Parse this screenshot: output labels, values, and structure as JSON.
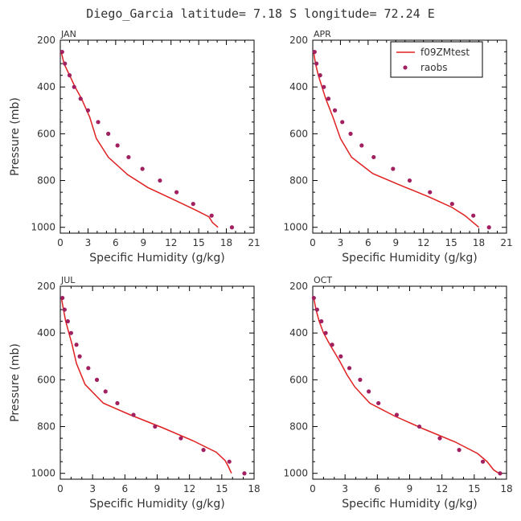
{
  "figure": {
    "title": "Diego_Garcia  latitude=  7.18 S longitude=  72.24 E"
  },
  "colors": {
    "model_line": "#e02020",
    "obs_marker": "#a02060",
    "axis": "#000000"
  },
  "legend": {
    "placement": "top-right of APR panel",
    "entries": [
      {
        "name": "f09ZMtest",
        "style": "line",
        "color": "#e02020"
      },
      {
        "name": "raobs",
        "style": "marker",
        "color": "#a02060"
      }
    ]
  },
  "chart_data": [
    {
      "type": "line",
      "panel_label": "JAN",
      "xlabel": "Specific Humidity (g/kg)",
      "ylabel": "Pressure (mb)",
      "xlim": [
        0,
        21
      ],
      "xticks": [
        0,
        3,
        6,
        9,
        12,
        15,
        18,
        21
      ],
      "ylim": [
        200,
        1025
      ],
      "yticks": [
        200,
        400,
        600,
        800,
        1000
      ],
      "y_inverted": true,
      "series": [
        {
          "name": "f09ZMtest",
          "kind": "line",
          "x": [
            0.1,
            0.4,
            1.0,
            1.6,
            2.3,
            3.2,
            3.9,
            5.2,
            7.3,
            9.5,
            12.2,
            14.6,
            16.1,
            16.5,
            17.1
          ],
          "y": [
            250,
            300,
            350,
            400,
            450,
            530,
            620,
            700,
            775,
            830,
            880,
            925,
            955,
            980,
            1000
          ]
        },
        {
          "name": "raobs",
          "kind": "scatter",
          "x": [
            0.2,
            0.5,
            1.0,
            1.5,
            2.2,
            3.0,
            4.1,
            5.2,
            6.2,
            7.4,
            8.9,
            10.8,
            12.6,
            14.4,
            16.4,
            18.6
          ],
          "y": [
            250,
            300,
            350,
            400,
            450,
            500,
            550,
            600,
            650,
            700,
            750,
            800,
            850,
            900,
            950,
            1000
          ]
        }
      ]
    },
    {
      "type": "line",
      "panel_label": "APR",
      "xlabel": "Specific Humidity (g/kg)",
      "ylabel": "",
      "xlim": [
        0,
        21
      ],
      "xticks": [
        0,
        3,
        6,
        9,
        12,
        15,
        18,
        21
      ],
      "ylim": [
        200,
        1025
      ],
      "yticks": [
        200,
        400,
        600,
        800,
        1000
      ],
      "y_inverted": true,
      "series": [
        {
          "name": "f09ZMtest",
          "kind": "line",
          "x": [
            0.1,
            0.3,
            0.6,
            1.0,
            1.4,
            2.2,
            3.0,
            4.2,
            6.5,
            9.5,
            12.6,
            15.1,
            16.5,
            17.4,
            18.0
          ],
          "y": [
            250,
            300,
            350,
            400,
            450,
            530,
            620,
            700,
            770,
            820,
            870,
            915,
            950,
            980,
            1000
          ]
        },
        {
          "name": "raobs",
          "kind": "scatter",
          "x": [
            0.2,
            0.4,
            0.8,
            1.2,
            1.7,
            2.4,
            3.2,
            4.1,
            5.3,
            6.6,
            8.7,
            10.5,
            12.7,
            15.1,
            17.4,
            19.1
          ],
          "y": [
            250,
            300,
            350,
            400,
            450,
            500,
            550,
            600,
            650,
            700,
            750,
            800,
            850,
            900,
            950,
            1000
          ]
        }
      ]
    },
    {
      "type": "line",
      "panel_label": "JUL",
      "xlabel": "Specific Humidity (g/kg)",
      "ylabel": "Pressure (mb)",
      "xlim": [
        0,
        18
      ],
      "xticks": [
        0,
        3,
        6,
        9,
        12,
        15,
        18
      ],
      "ylim": [
        200,
        1025
      ],
      "yticks": [
        200,
        400,
        600,
        800,
        1000
      ],
      "y_inverted": true,
      "series": [
        {
          "name": "f09ZMtest",
          "kind": "line",
          "x": [
            0.1,
            0.3,
            0.5,
            0.8,
            1.1,
            1.5,
            2.3,
            4.0,
            6.5,
            9.5,
            12.3,
            14.5,
            15.3,
            15.6,
            15.9
          ],
          "y": [
            250,
            300,
            350,
            400,
            450,
            530,
            620,
            700,
            750,
            805,
            860,
            910,
            945,
            970,
            1000
          ]
        },
        {
          "name": "raobs",
          "kind": "scatter",
          "x": [
            0.2,
            0.4,
            0.7,
            1.0,
            1.5,
            1.8,
            2.6,
            3.4,
            4.2,
            5.3,
            6.8,
            8.8,
            11.2,
            13.3,
            15.7,
            17.1
          ],
          "y": [
            250,
            300,
            350,
            400,
            450,
            500,
            550,
            600,
            650,
            700,
            750,
            800,
            850,
            900,
            950,
            1000
          ]
        }
      ]
    },
    {
      "type": "line",
      "panel_label": "OCT",
      "xlabel": "Specific Humidity (g/kg)",
      "ylabel": "",
      "xlim": [
        0,
        18
      ],
      "xticks": [
        0,
        3,
        6,
        9,
        12,
        15,
        18
      ],
      "ylim": [
        200,
        1025
      ],
      "yticks": [
        200,
        400,
        600,
        800,
        1000
      ],
      "y_inverted": true,
      "series": [
        {
          "name": "f09ZMtest",
          "kind": "line",
          "x": [
            0.1,
            0.3,
            0.6,
            1.0,
            1.6,
            2.5,
            3.2,
            3.9,
            5.3,
            7.6,
            10.3,
            13.2,
            15.3,
            16.2,
            16.8,
            17.3
          ],
          "y": [
            250,
            300,
            350,
            400,
            450,
            520,
            580,
            630,
            700,
            755,
            810,
            865,
            915,
            950,
            985,
            1000
          ]
        },
        {
          "name": "raobs",
          "kind": "scatter",
          "x": [
            0.1,
            0.4,
            0.8,
            1.2,
            1.8,
            2.6,
            3.4,
            4.4,
            5.2,
            6.1,
            7.8,
            9.9,
            11.8,
            13.6,
            15.8,
            17.4
          ],
          "y": [
            250,
            300,
            350,
            400,
            450,
            500,
            550,
            600,
            650,
            700,
            750,
            800,
            850,
            900,
            950,
            1000
          ]
        }
      ]
    }
  ]
}
